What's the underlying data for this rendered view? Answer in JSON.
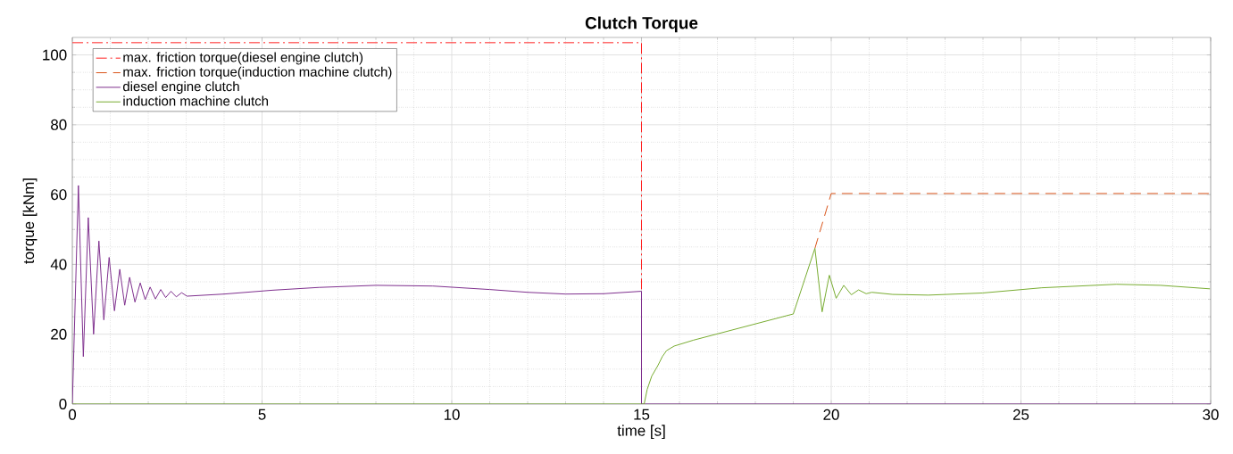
{
  "chart_data": {
    "type": "line",
    "title": "Clutch Torque",
    "xlabel": "time [s]",
    "ylabel": "torque [kNm]",
    "xlim": [
      0,
      30
    ],
    "ylim": [
      0,
      105
    ],
    "xticks": [
      0,
      5,
      10,
      15,
      20,
      25,
      30
    ],
    "yticks": [
      0,
      20,
      40,
      60,
      80,
      100
    ],
    "grid": true,
    "legend": "top left",
    "marker": "none",
    "series": [
      {
        "name": "max. friction torque(diesel engine clutch)",
        "color": "#ff2020",
        "line_style": "dashdot",
        "x": [
          0,
          15,
          15
        ],
        "values": [
          103.5,
          103.5,
          0
        ]
      },
      {
        "name": "max. friction torque(induction machine clutch)",
        "color": "#d95319",
        "line_style": "dashed",
        "x": [
          19.57,
          20.0,
          30
        ],
        "values": [
          44.6,
          60.3,
          60.3
        ]
      },
      {
        "name": "diesel engine clutch",
        "color": "#7e2f8e",
        "line_style": "solid",
        "x": [
          0,
          0.16,
          0.29,
          0.42,
          0.56,
          0.7,
          0.83,
          0.97,
          1.11,
          1.25,
          1.38,
          1.51,
          1.65,
          1.79,
          1.92,
          2.05,
          2.19,
          2.33,
          2.46,
          2.6,
          2.74,
          2.88,
          3.02,
          4.0,
          5.27,
          6.5,
          8.0,
          9.5,
          11.0,
          12.0,
          13.0,
          14.0,
          15.0,
          15.0,
          30
        ],
        "values": [
          0,
          62.6,
          13.6,
          53.4,
          20.0,
          46.7,
          24.1,
          42.0,
          26.7,
          38.6,
          28.3,
          36.3,
          29.2,
          34.7,
          29.9,
          33.5,
          30.1,
          32.8,
          30.5,
          32.3,
          30.7,
          31.9,
          30.9,
          31.5,
          32.6,
          33.4,
          34.0,
          33.8,
          32.8,
          32.0,
          31.5,
          31.6,
          32.3,
          0,
          0
        ]
      },
      {
        "name": "induction machine clutch",
        "color": "#77ac30",
        "line_style": "solid",
        "x": [
          0,
          15.07,
          15.15,
          15.27,
          15.43,
          15.55,
          15.66,
          15.86,
          16.37,
          19.0,
          19.57,
          19.76,
          19.95,
          20.13,
          20.33,
          20.53,
          20.72,
          20.92,
          21.07,
          21.62,
          22.56,
          23.98,
          25.55,
          27.51,
          28.68,
          29.98
        ],
        "values": [
          0,
          0,
          4.2,
          8.0,
          11.0,
          13.6,
          15.3,
          16.6,
          18.3,
          25.8,
          44.6,
          26.4,
          36.9,
          30.3,
          34.0,
          31.3,
          32.7,
          31.6,
          32.0,
          31.4,
          31.2,
          31.8,
          33.3,
          34.3,
          34.0,
          33.0
        ]
      }
    ]
  }
}
